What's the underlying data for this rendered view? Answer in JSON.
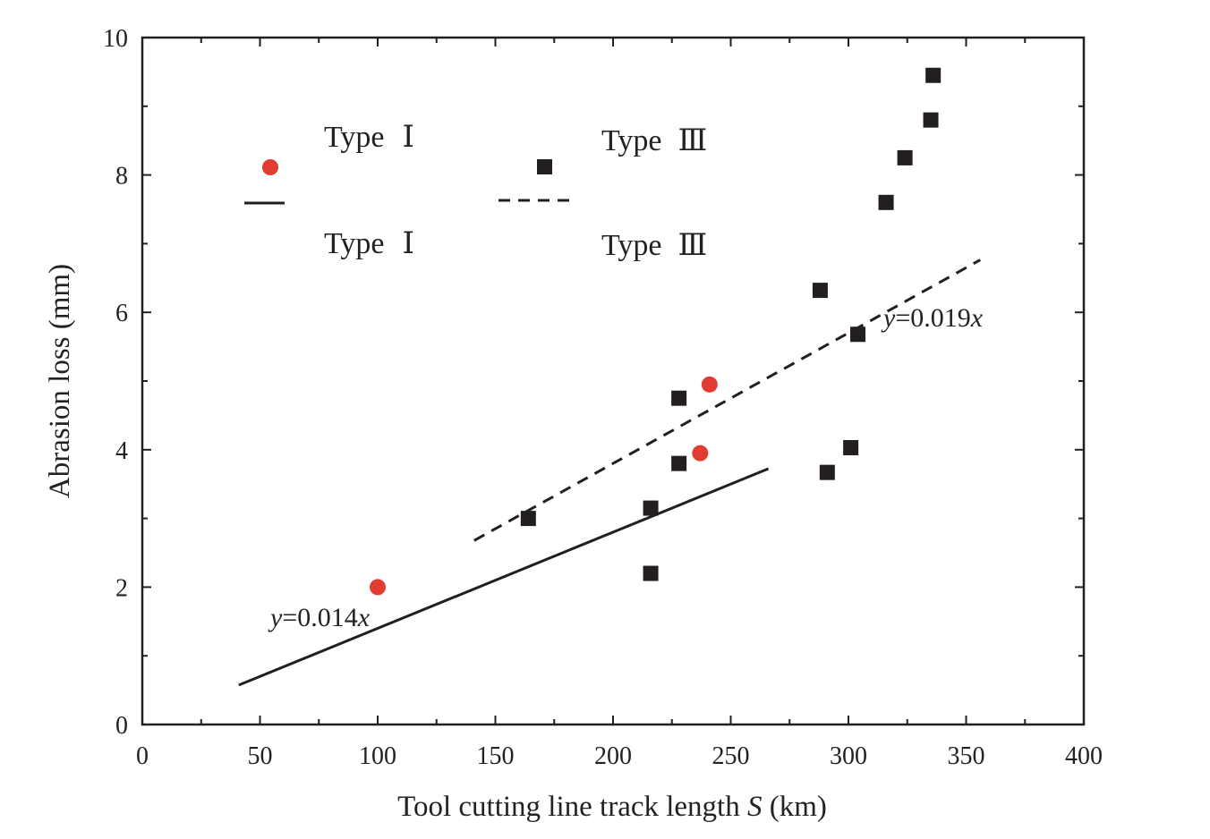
{
  "chart_data": {
    "type": "scatter",
    "xlabel": "Tool cutting line track length",
    "xlabel_symbol": "S",
    "xlabel_unit": "(km)",
    "ylabel": "Abrasion loss (mm)",
    "xlim": [
      0,
      400
    ],
    "ylim": [
      0,
      10
    ],
    "xticks": [
      0,
      50,
      100,
      150,
      200,
      250,
      300,
      350,
      400
    ],
    "yticks": [
      0,
      2,
      4,
      6,
      8,
      10
    ],
    "grid": false,
    "series": [
      {
        "name": "Type I",
        "kind": "points",
        "marker": "circle",
        "color": "#e03c31",
        "points": [
          [
            100,
            2.0
          ],
          [
            237,
            3.95
          ],
          [
            241,
            4.95
          ]
        ]
      },
      {
        "name": "Type III",
        "kind": "points",
        "marker": "square",
        "color": "#231f20",
        "points": [
          [
            164,
            3.0
          ],
          [
            216,
            3.15
          ],
          [
            216,
            2.2
          ],
          [
            228,
            4.75
          ],
          [
            228,
            3.8
          ],
          [
            288,
            6.32
          ],
          [
            291,
            3.67
          ],
          [
            301,
            4.03
          ],
          [
            304,
            5.68
          ],
          [
            316,
            7.6
          ],
          [
            324,
            8.25
          ],
          [
            335,
            8.8
          ],
          [
            336,
            9.45
          ]
        ]
      },
      {
        "name": "Type I",
        "kind": "fit",
        "dash": "solid",
        "color": "#231f20",
        "slope": 0.014,
        "x_range": [
          41,
          266
        ]
      },
      {
        "name": "Type III",
        "kind": "fit",
        "dash": "dashed",
        "color": "#231f20",
        "slope": 0.019,
        "x_range": [
          141,
          356
        ]
      }
    ],
    "legend": {
      "location": "top-left",
      "entries": [
        {
          "label": "Type",
          "numeral": "Ⅰ",
          "symbol": "circle"
        },
        {
          "label": "Type",
          "numeral": "Ⅲ",
          "symbol": "square"
        },
        {
          "label": "Type",
          "numeral": "Ⅰ",
          "symbol": "solid-line"
        },
        {
          "label": "Type",
          "numeral": "Ⅲ",
          "symbol": "dashed-line"
        }
      ]
    },
    "annotations": [
      {
        "var": "y",
        "rest": "=0.014",
        "var2": "x"
      },
      {
        "var": "y",
        "rest": "=0.019",
        "var2": "x"
      }
    ]
  }
}
